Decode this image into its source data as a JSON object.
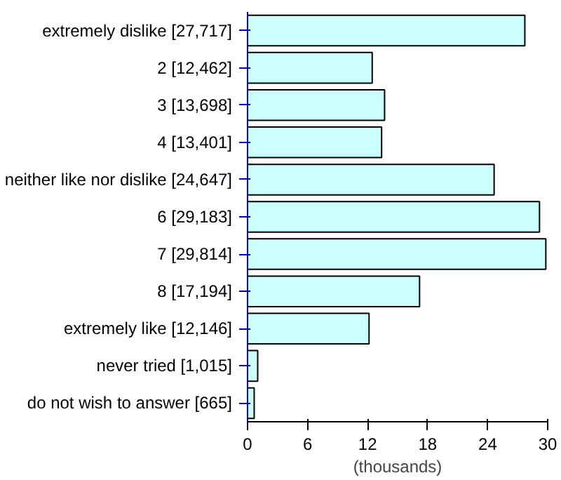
{
  "chart_data": {
    "type": "bar",
    "orientation": "horizontal",
    "xlabel": "(thousands)",
    "categories": [
      "extremely dislike [27,717]",
      "2 [12,462]",
      "3 [13,698]",
      "4 [13,401]",
      "neither like nor dislike [24,647]",
      "6 [29,183]",
      "7 [29,814]",
      "8 [17,194]",
      "extremely like [12,146]",
      "never tried [1,015]",
      "do not wish to answer [665]"
    ],
    "values": [
      27.717,
      12.462,
      13.698,
      13.401,
      24.647,
      29.183,
      29.814,
      17.194,
      12.146,
      1.015,
      0.665
    ],
    "color": "#ccffff",
    "xlim": [
      0,
      30
    ],
    "xticks": [
      0,
      6,
      12,
      18,
      24,
      30
    ],
    "grid": false
  }
}
